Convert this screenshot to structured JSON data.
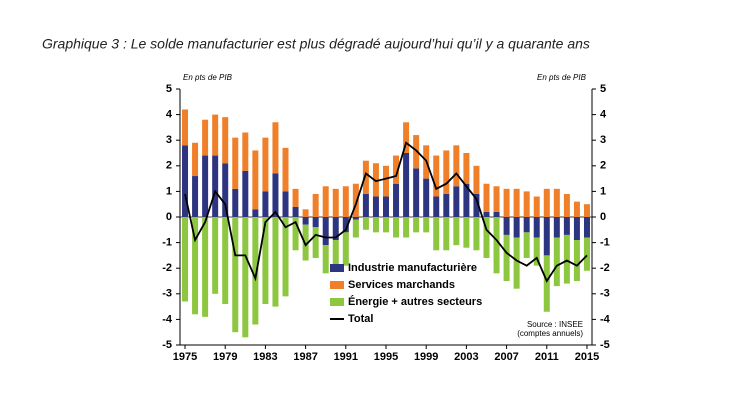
{
  "chart_data": {
    "type": "bar",
    "stacked": true,
    "title": "Graphique 3 : Le solde manufacturier est plus dégradé aujourd’hui qu’il y a quarante ans",
    "y_label": "En pts de PIB",
    "y2_label": "En pts de PIB",
    "source": [
      "Source : INSEE",
      "(comptes annuels)"
    ],
    "x": [
      1975,
      1976,
      1977,
      1978,
      1979,
      1980,
      1981,
      1982,
      1983,
      1984,
      1985,
      1986,
      1987,
      1988,
      1989,
      1990,
      1991,
      1992,
      1993,
      1994,
      1995,
      1996,
      1997,
      1998,
      1999,
      2000,
      2001,
      2002,
      2003,
      2004,
      2005,
      2006,
      2007,
      2008,
      2009,
      2010,
      2011,
      2012,
      2013,
      2014,
      2015
    ],
    "xlim": [
      1974.5,
      2015.5
    ],
    "xticks": [
      1975,
      1979,
      1983,
      1987,
      1991,
      1995,
      1999,
      2003,
      2007,
      2011,
      2015
    ],
    "ylim": [
      -5,
      5
    ],
    "yticks": [
      -5,
      -4,
      -3,
      -2,
      -1,
      0,
      1,
      2,
      3,
      4,
      5
    ],
    "y2lim": [
      -5,
      5
    ],
    "y2ticks": [
      -5,
      -4,
      -3,
      -2,
      -1,
      0,
      1,
      2,
      3,
      4,
      5
    ],
    "grid": false,
    "legend": "lower center",
    "series": [
      {
        "name": "Industrie manufacturière",
        "color": "#2e3580",
        "values": [
          2.8,
          1.6,
          2.4,
          2.4,
          2.1,
          1.1,
          1.8,
          0.3,
          1.0,
          1.7,
          1.0,
          0.4,
          -0.3,
          -0.4,
          -1.1,
          -0.9,
          -0.6,
          -0.1,
          0.9,
          0.8,
          0.8,
          1.3,
          2.5,
          1.9,
          1.5,
          0.8,
          0.9,
          1.2,
          1.3,
          0.9,
          0.2,
          0.2,
          -0.7,
          -0.8,
          -0.6,
          -0.8,
          -1.5,
          -0.8,
          -0.7,
          -0.9,
          -0.8
        ]
      },
      {
        "name": "Services marchands",
        "color": "#f07f2a",
        "values": [
          1.4,
          1.3,
          1.4,
          1.6,
          1.8,
          2.0,
          1.5,
          2.3,
          2.1,
          2.0,
          1.7,
          0.7,
          0.3,
          0.9,
          1.2,
          1.1,
          1.2,
          1.3,
          1.3,
          1.3,
          1.2,
          1.1,
          1.2,
          1.3,
          1.3,
          1.6,
          1.7,
          1.6,
          1.2,
          1.1,
          1.1,
          1.0,
          1.1,
          1.1,
          1.0,
          0.8,
          1.1,
          1.1,
          0.9,
          0.6,
          0.5
        ]
      },
      {
        "name": "Énergie + autres secteurs",
        "color": "#8dc63f",
        "values": [
          -3.3,
          -3.8,
          -3.9,
          -3.0,
          -3.4,
          -4.5,
          -4.7,
          -4.2,
          -3.4,
          -3.5,
          -3.1,
          -1.3,
          -1.4,
          -1.2,
          -1.1,
          -1.2,
          -1.3,
          -0.7,
          -0.5,
          -0.6,
          -0.6,
          -0.8,
          -0.8,
          -0.6,
          -0.6,
          -1.3,
          -1.3,
          -1.1,
          -1.2,
          -1.3,
          -1.6,
          -2.2,
          -1.8,
          -2.0,
          -1.0,
          -1.1,
          -2.2,
          -1.9,
          -1.9,
          -1.6,
          -1.3
        ]
      },
      {
        "name": "Total",
        "type": "line",
        "color": "#000000",
        "values": [
          0.9,
          -0.9,
          -0.2,
          1.0,
          0.5,
          -1.5,
          -1.5,
          -2.4,
          -0.2,
          0.2,
          -0.4,
          -0.2,
          -1.1,
          -0.7,
          -0.8,
          -0.8,
          -0.5,
          0.5,
          1.7,
          1.4,
          1.5,
          1.6,
          2.9,
          2.6,
          2.2,
          1.1,
          1.3,
          1.7,
          1.2,
          0.7,
          -0.5,
          -0.9,
          -1.4,
          -1.7,
          -1.9,
          -1.6,
          -2.5,
          -1.9,
          -1.7,
          -1.9,
          -1.5
        ]
      }
    ]
  }
}
